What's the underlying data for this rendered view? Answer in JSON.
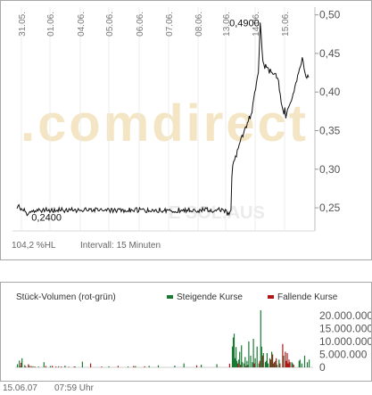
{
  "chart_data": [
    {
      "type": "line",
      "title": "",
      "x_tick_labels": [
        "31.05.",
        "01.06.",
        "04.06.",
        "05.06.",
        "06.06.",
        "07.06.",
        "08.06.",
        "13.06.",
        "14.06.",
        "15.06."
      ],
      "y_tick_labels": [
        "0,50",
        "0,45",
        "0,40",
        "0,35",
        "0,30",
        "0,25"
      ],
      "ylim": [
        0.22,
        0.51
      ],
      "watermark": ".comdirect",
      "corner_label": "E SOL.AUS",
      "annotations": [
        {
          "label": "0,4900",
          "x_index": 270,
          "y": 0.49
        },
        {
          "label": "0,2400",
          "x_index": 12,
          "y": 0.24
        }
      ],
      "performance_label": "104,2 %HL",
      "interval_label": "Intervall: 15 Minuten",
      "series": [
        {
          "values": [
            0.249,
            0.252,
            0.254,
            0.25,
            0.247,
            0.249,
            0.247,
            0.246,
            0.249,
            0.245,
            0.244,
            0.24,
            0.241,
            0.243,
            0.245,
            0.244,
            0.246,
            0.245,
            0.247,
            0.244,
            0.246,
            0.245,
            0.248,
            0.246,
            0.249,
            0.247,
            0.246,
            0.244,
            0.247,
            0.249,
            0.245,
            0.247,
            0.25,
            0.246,
            0.246,
            0.248,
            0.244,
            0.246,
            0.249,
            0.245,
            0.244,
            0.249,
            0.245,
            0.246,
            0.247,
            0.245,
            0.25,
            0.246,
            0.246,
            0.25,
            0.247,
            0.246,
            0.244,
            0.247,
            0.249,
            0.245,
            0.245,
            0.249,
            0.247,
            0.247,
            0.25,
            0.246,
            0.246,
            0.248,
            0.248,
            0.244,
            0.246,
            0.249,
            0.247,
            0.246,
            0.247,
            0.246,
            0.245,
            0.246,
            0.249,
            0.25,
            0.247,
            0.246,
            0.246,
            0.249,
            0.248,
            0.249,
            0.245,
            0.246,
            0.248,
            0.245,
            0.25,
            0.249,
            0.249,
            0.246,
            0.246,
            0.248,
            0.249,
            0.247,
            0.246,
            0.246,
            0.247,
            0.248,
            0.246,
            0.249,
            0.249,
            0.247,
            0.244,
            0.249,
            0.249,
            0.244,
            0.247,
            0.249,
            0.246,
            0.244,
            0.248,
            0.249,
            0.248,
            0.249,
            0.245,
            0.248,
            0.248,
            0.244,
            0.247,
            0.245,
            0.245,
            0.246,
            0.245,
            0.25,
            0.244,
            0.248,
            0.247,
            0.246,
            0.245,
            0.248,
            0.25,
            0.25,
            0.244,
            0.245,
            0.25,
            0.248,
            0.248,
            0.248,
            0.249,
            0.248,
            0.246,
            0.244,
            0.244,
            0.249,
            0.245,
            0.246,
            0.245,
            0.245,
            0.248,
            0.247,
            0.245,
            0.247,
            0.248,
            0.245,
            0.244,
            0.244,
            0.25,
            0.246,
            0.245,
            0.244,
            0.246,
            0.246,
            0.249,
            0.244,
            0.248,
            0.247,
            0.247,
            0.248,
            0.246,
            0.246,
            0.244,
            0.245,
            0.244,
            0.245,
            0.244,
            0.244,
            0.244,
            0.25,
            0.244,
            0.246,
            0.247,
            0.246,
            0.248,
            0.245,
            0.249,
            0.244,
            0.247,
            0.246,
            0.25,
            0.245,
            0.246,
            0.245,
            0.245,
            0.248,
            0.248,
            0.246,
            0.245,
            0.244,
            0.246,
            0.244,
            0.248,
            0.247,
            0.245,
            0.25,
            0.247,
            0.246,
            0.25,
            0.249,
            0.25,
            0.245,
            0.246,
            0.245,
            0.248,
            0.245,
            0.244,
            0.245,
            0.246,
            0.247,
            0.246,
            0.248,
            0.248,
            0.25,
            0.246,
            0.245,
            0.249,
            0.248,
            0.247,
            0.244,
            0.248,
            0.247,
            0.24,
            0.244,
            0.241,
            0.245,
            0.247,
            0.29,
            0.305,
            0.31,
            0.312,
            0.317,
            0.316,
            0.325,
            0.327,
            0.332,
            0.335,
            0.34,
            0.344,
            0.342,
            0.347,
            0.352,
            0.355,
            0.354,
            0.36,
            0.362,
            0.369,
            0.365,
            0.371,
            0.373,
            0.385,
            0.392,
            0.4,
            0.403,
            0.413,
            0.42,
            0.425,
            0.453,
            0.49,
            0.475,
            0.455,
            0.44,
            0.436,
            0.43,
            0.436,
            0.432,
            0.432,
            0.43,
            0.424,
            0.43,
            0.426,
            0.425,
            0.423,
            0.423,
            0.424,
            0.424,
            0.418,
            0.418,
            0.415,
            0.402,
            0.397,
            0.386,
            0.381,
            0.376,
            0.371,
            0.38,
            0.366,
            0.372,
            0.378,
            0.38,
            0.383,
            0.386,
            0.388,
            0.392,
            0.398,
            0.4,
            0.407,
            0.412,
            0.414,
            0.422,
            0.425,
            0.43,
            0.433,
            0.437,
            0.445,
            0.44,
            0.43,
            0.425,
            0.42,
            0.418,
            0.422,
            0.419
          ]
        }
      ]
    },
    {
      "type": "bar",
      "title": "Stück-Volumen (rot-grün)",
      "y_tick_labels": [
        "20.000.000",
        "15.000.000",
        "10.000.000",
        "5.000.000",
        "0"
      ],
      "ylim": [
        0,
        22000000
      ],
      "series": [
        {
          "name": "Steigende Kurse",
          "color": "#1a7a35",
          "values": [
            1200000,
            0,
            2600000,
            400000,
            0,
            3500000,
            0,
            0,
            900000,
            0,
            0,
            0,
            0,
            600000,
            0,
            0,
            0,
            400000,
            0,
            0,
            0,
            0,
            0,
            300000,
            0,
            0,
            0,
            0,
            0,
            2000000,
            0,
            0,
            0,
            0,
            0,
            0,
            500000,
            0,
            0,
            0,
            0,
            0,
            0,
            0,
            0,
            400000,
            0,
            0,
            0,
            0,
            0,
            0,
            700000,
            0,
            0,
            0,
            0,
            0,
            0,
            0,
            0,
            0,
            0,
            300000,
            0,
            0,
            0,
            0,
            0,
            0,
            0,
            2200000,
            0,
            0,
            0,
            0,
            0,
            0,
            0,
            0,
            0,
            0,
            0,
            0,
            0,
            0,
            0,
            0,
            0,
            0,
            0,
            0,
            0,
            0,
            0,
            0,
            0,
            0,
            0,
            0,
            400000,
            0,
            0,
            0,
            0,
            0,
            0,
            0,
            0,
            0,
            0,
            0,
            0,
            0,
            0,
            0,
            0,
            0,
            0,
            0,
            0,
            300000,
            0,
            0,
            0,
            0,
            0,
            0,
            0,
            500000,
            0,
            0,
            0,
            0,
            0,
            0,
            0,
            0,
            0,
            0,
            0,
            0,
            0,
            0,
            600000,
            0,
            0,
            0,
            0,
            0,
            0,
            0,
            0,
            0,
            800000,
            0,
            0,
            0,
            0,
            0,
            0,
            0,
            0,
            0,
            0,
            0,
            0,
            0,
            0,
            0,
            0,
            0,
            700000,
            0,
            0,
            0,
            0,
            0,
            0,
            0,
            0,
            0,
            1500000,
            0,
            0,
            0,
            0,
            0,
            0,
            0,
            0,
            0,
            0,
            0,
            0,
            0,
            0,
            0,
            0,
            0,
            0,
            1000000,
            0,
            0,
            0,
            0,
            0,
            0,
            0,
            0,
            0,
            0,
            0,
            0,
            0,
            0,
            0,
            0,
            1200000,
            0,
            0,
            0,
            0,
            0,
            0,
            0,
            0,
            0,
            0,
            0,
            0,
            0,
            0,
            0,
            0,
            8000000,
            11500000,
            13000000,
            3500000,
            7800000,
            2500000,
            0,
            3000000,
            6000000,
            0,
            8500000,
            2000000,
            0,
            1500000,
            4000000,
            0,
            2500000,
            1000000,
            10000000,
            0,
            4500000,
            0,
            2000000,
            11000000,
            0,
            3500000,
            0,
            8000000,
            0,
            1500000,
            0,
            22000000,
            8000000,
            0,
            5500000,
            0,
            2000000,
            2500000,
            5500000,
            1500000,
            0,
            3500000,
            0,
            6000000,
            0,
            1500000,
            0,
            2500000,
            0,
            1000000,
            0,
            3000000,
            0,
            0,
            0,
            0,
            4500000,
            0,
            0,
            0,
            0,
            0,
            0,
            0,
            0,
            2000000,
            1500000,
            0,
            0,
            0,
            0,
            0,
            0,
            2500000,
            3000000,
            0,
            1500000,
            0,
            0,
            4500000,
            0,
            0,
            2000000,
            0,
            3000000
          ]
        },
        {
          "name": "Fallende Kurse",
          "color": "#b01818",
          "values": [
            0,
            0,
            0,
            0,
            1800000,
            0,
            0,
            0,
            0,
            300000,
            0,
            0,
            1200000,
            0,
            0,
            500000,
            0,
            0,
            0,
            300000,
            0,
            0,
            0,
            0,
            0,
            0,
            0,
            0,
            0,
            0,
            0,
            500000,
            0,
            0,
            0,
            0,
            0,
            0,
            600000,
            0,
            0,
            0,
            300000,
            0,
            0,
            0,
            0,
            0,
            300000,
            0,
            0,
            0,
            0,
            0,
            0,
            0,
            200000,
            0,
            0,
            0,
            0,
            0,
            300000,
            0,
            0,
            0,
            0,
            0,
            0,
            0,
            0,
            0,
            0,
            0,
            0,
            0,
            0,
            0,
            0,
            0,
            1500000,
            0,
            0,
            0,
            0,
            0,
            0,
            0,
            0,
            0,
            0,
            0,
            300000,
            0,
            0,
            0,
            0,
            0,
            0,
            0,
            0,
            0,
            0,
            0,
            0,
            0,
            0,
            0,
            0,
            0,
            600000,
            0,
            0,
            0,
            0,
            0,
            0,
            0,
            0,
            0,
            0,
            0,
            0,
            0,
            0,
            0,
            0,
            500000,
            0,
            0,
            0,
            0,
            0,
            0,
            0,
            0,
            0,
            0,
            0,
            400000,
            0,
            0,
            0,
            0,
            0,
            0,
            0,
            0,
            0,
            0,
            0,
            0,
            0,
            0,
            0,
            0,
            0,
            0,
            0,
            0,
            0,
            0,
            0,
            0,
            0,
            0,
            0,
            0,
            0,
            0,
            0,
            0,
            0,
            0,
            0,
            0,
            0,
            0,
            0,
            0,
            0,
            0,
            0,
            0,
            0,
            0,
            0,
            0,
            0,
            0,
            0,
            0,
            0,
            0,
            0,
            0,
            800000,
            0,
            0,
            0,
            0,
            0,
            0,
            0,
            0,
            0,
            0,
            0,
            0,
            0,
            0,
            0,
            0,
            0,
            0,
            0,
            0,
            0,
            0,
            0,
            0,
            0,
            0,
            0,
            0,
            0,
            0,
            0,
            0,
            0,
            0,
            0,
            1400000,
            0,
            0,
            0,
            0,
            0,
            0,
            0,
            0,
            1500000,
            0,
            0,
            1000000,
            0,
            0,
            0,
            0,
            0,
            600000,
            0,
            0,
            0,
            0,
            0,
            0,
            0,
            0,
            1500000,
            0,
            0,
            0,
            0,
            0,
            2500000,
            0,
            0,
            4500000,
            0,
            0,
            0,
            0,
            0,
            0,
            0,
            0,
            3000000,
            0,
            5000000,
            0,
            2000000,
            0,
            3500000,
            0,
            0,
            0,
            1500000,
            0,
            0,
            9000000,
            0,
            0,
            6000000,
            2500000,
            5500000,
            1500000,
            3000000,
            2000000,
            0,
            0,
            0,
            1000000,
            0,
            0,
            0,
            0,
            0,
            0,
            0,
            0,
            0,
            0,
            0,
            0,
            0,
            0,
            0,
            0,
            0
          ]
        }
      ]
    }
  ],
  "footer": {
    "date": "15.06.07",
    "time": "07:59 Uhr"
  }
}
